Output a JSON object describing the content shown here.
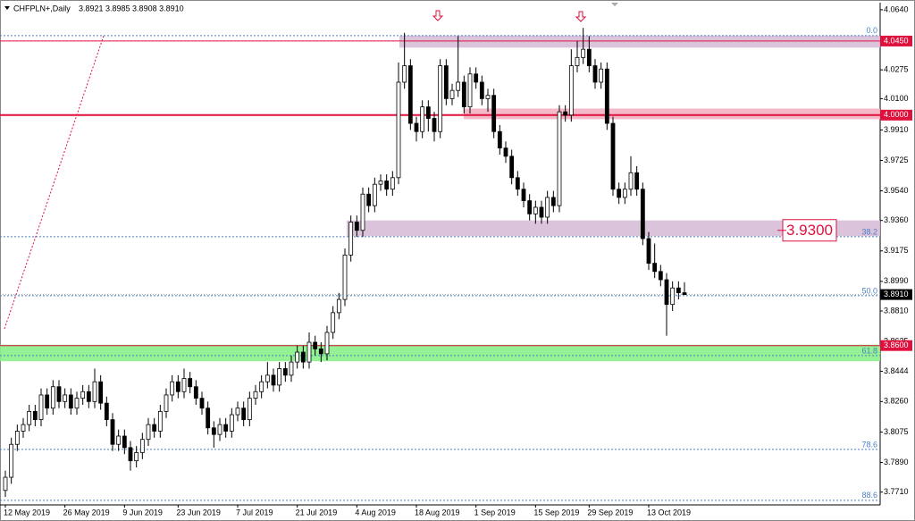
{
  "chart_data": {
    "type": "candlestick",
    "title": "CHFPLN+,Daily",
    "quote": "3.8921 3.8985 3.8908 3.8910",
    "categories": [
      "12 May 2019",
      null,
      null,
      null,
      null,
      null,
      null,
      null,
      null,
      null,
      "26 May 2019",
      null,
      null,
      null,
      null,
      null,
      null,
      null,
      null,
      null,
      "9 Jun 2019",
      null,
      null,
      null,
      null,
      null,
      null,
      null,
      null,
      "23 Jun 2019",
      null,
      null,
      null,
      null,
      null,
      null,
      null,
      null,
      null,
      "7 Jul 2019",
      null,
      null,
      null,
      null,
      null,
      null,
      null,
      null,
      null,
      "21 Jul 2019",
      null,
      null,
      null,
      null,
      null,
      null,
      null,
      null,
      null,
      "4 Aug 2019",
      null,
      null,
      null,
      null,
      null,
      null,
      null,
      null,
      null,
      "18 Aug 2019",
      null,
      null,
      null,
      null,
      null,
      null,
      null,
      null,
      null,
      "1 Sep 2019",
      null,
      null,
      null,
      null,
      null,
      null,
      null,
      null,
      null,
      "15 Sep 2019",
      null,
      null,
      null,
      null,
      null,
      null,
      null,
      null,
      "29 Sep 2019",
      null,
      null,
      null,
      null,
      null,
      null,
      null,
      null,
      null,
      "13 Oct 2019",
      null,
      null,
      null,
      null,
      null,
      null
    ],
    "open": [
      3.772,
      3.78,
      3.8,
      3.808,
      3.812,
      3.82,
      3.815,
      3.83,
      3.822,
      3.835,
      3.826,
      3.83,
      3.822,
      3.828,
      3.832,
      3.826,
      3.838,
      3.825,
      3.815,
      3.8,
      3.805,
      3.798,
      3.79,
      3.795,
      3.803,
      3.812,
      3.808,
      3.82,
      3.83,
      3.838,
      3.832,
      3.84,
      3.835,
      3.828,
      3.822,
      3.81,
      3.806,
      3.812,
      3.808,
      3.818,
      3.822,
      3.815,
      3.828,
      3.832,
      3.838,
      3.842,
      3.836,
      3.846,
      3.842,
      3.85,
      3.856,
      3.85,
      3.862,
      3.858,
      3.855,
      3.868,
      3.88,
      3.888,
      3.915,
      3.935,
      3.93,
      3.952,
      3.945,
      3.958,
      3.96,
      3.955,
      3.962,
      4.02,
      4.03,
      3.995,
      3.99,
      4.005,
      3.998,
      3.99,
      4.03,
      4.01,
      4.015,
      4.02,
      4.005,
      4.025,
      4.02,
      4.01,
      4.012,
      3.99,
      3.98,
      3.975,
      3.962,
      3.955,
      3.948,
      3.94,
      3.944,
      3.938,
      3.95,
      3.945,
      4.002,
      4.0,
      4.03,
      4.035,
      4.04,
      4.03,
      4.02,
      4.028,
      3.995,
      3.955,
      3.95,
      3.955,
      3.965,
      3.955,
      3.925,
      3.91,
      3.905,
      3.9,
      3.885,
      3.895,
      3.8921
    ],
    "high": [
      3.784,
      3.804,
      3.812,
      3.816,
      3.824,
      3.824,
      3.834,
      3.834,
      3.839,
      3.839,
      3.834,
      3.834,
      3.832,
      3.836,
      3.836,
      3.846,
      3.842,
      3.829,
      3.819,
      3.809,
      3.809,
      3.802,
      3.799,
      3.807,
      3.816,
      3.816,
      3.824,
      3.834,
      3.842,
      3.842,
      3.846,
      3.844,
      3.839,
      3.832,
      3.826,
      3.814,
      3.816,
      3.816,
      3.822,
      3.826,
      3.826,
      3.832,
      3.836,
      3.842,
      3.85,
      3.846,
      3.85,
      3.85,
      3.854,
      3.86,
      3.86,
      3.868,
      3.866,
      3.862,
      3.872,
      3.884,
      3.892,
      3.919,
      3.939,
      3.939,
      3.956,
      3.956,
      3.962,
      3.964,
      3.964,
      3.966,
      4.032,
      4.05,
      4.034,
      3.999,
      4.009,
      4.009,
      4.002,
      4.034,
      4.034,
      4.019,
      4.048,
      4.024,
      4.029,
      4.029,
      4.024,
      4.016,
      4.016,
      3.994,
      3.984,
      3.979,
      3.966,
      3.959,
      3.952,
      3.948,
      3.948,
      3.954,
      3.954,
      4.006,
      4.006,
      4.04,
      4.045,
      4.053,
      4.048,
      4.034,
      4.032,
      4.032,
      3.999,
      3.959,
      3.959,
      3.975,
      3.969,
      3.959,
      3.929,
      3.922,
      3.909,
      3.904,
      3.899,
      3.899,
      3.8985
    ],
    "low": [
      3.768,
      3.776,
      3.796,
      3.804,
      3.808,
      3.811,
      3.811,
      3.818,
      3.818,
      3.822,
      3.822,
      3.818,
      3.818,
      3.824,
      3.822,
      3.822,
      3.821,
      3.811,
      3.796,
      3.796,
      3.794,
      3.784,
      3.786,
      3.791,
      3.799,
      3.804,
      3.804,
      3.816,
      3.826,
      3.828,
      3.828,
      3.831,
      3.824,
      3.818,
      3.806,
      3.798,
      3.802,
      3.804,
      3.804,
      3.814,
      3.811,
      3.811,
      3.824,
      3.828,
      3.834,
      3.832,
      3.832,
      3.838,
      3.838,
      3.846,
      3.846,
      3.846,
      3.854,
      3.85,
      3.851,
      3.864,
      3.876,
      3.884,
      3.911,
      3.926,
      3.926,
      3.941,
      3.941,
      3.954,
      3.951,
      3.951,
      3.958,
      4.016,
      3.991,
      3.984,
      3.986,
      3.99,
      3.984,
      3.986,
      4.006,
      4.006,
      4.011,
      4.001,
      4.001,
      4.016,
      4.006,
      4.002,
      3.986,
      3.976,
      3.971,
      3.958,
      3.951,
      3.944,
      3.936,
      3.934,
      3.934,
      3.934,
      3.941,
      3.941,
      3.996,
      3.996,
      4.026,
      4.031,
      4.026,
      4.016,
      4.016,
      3.991,
      3.951,
      3.946,
      3.946,
      3.951,
      3.951,
      3.921,
      3.906,
      3.901,
      3.896,
      3.866,
      3.881,
      3.888,
      3.8908
    ],
    "close": [
      3.78,
      3.8,
      3.808,
      3.812,
      3.82,
      3.815,
      3.83,
      3.822,
      3.835,
      3.826,
      3.83,
      3.822,
      3.828,
      3.832,
      3.826,
      3.838,
      3.825,
      3.815,
      3.8,
      3.805,
      3.798,
      3.79,
      3.795,
      3.803,
      3.812,
      3.808,
      3.82,
      3.83,
      3.838,
      3.832,
      3.84,
      3.835,
      3.828,
      3.822,
      3.81,
      3.806,
      3.812,
      3.808,
      3.818,
      3.822,
      3.815,
      3.828,
      3.832,
      3.838,
      3.842,
      3.836,
      3.846,
      3.842,
      3.85,
      3.856,
      3.85,
      3.862,
      3.858,
      3.855,
      3.868,
      3.88,
      3.888,
      3.915,
      3.935,
      3.93,
      3.952,
      3.945,
      3.958,
      3.96,
      3.955,
      3.962,
      4.02,
      4.03,
      3.995,
      3.99,
      4.005,
      3.998,
      3.99,
      4.03,
      4.01,
      4.015,
      4.02,
      4.005,
      4.025,
      4.02,
      4.01,
      4.012,
      3.99,
      3.98,
      3.975,
      3.962,
      3.955,
      3.948,
      3.94,
      3.944,
      3.938,
      3.95,
      3.945,
      4.002,
      4.0,
      4.03,
      4.035,
      4.04,
      4.03,
      4.02,
      4.028,
      3.995,
      3.955,
      3.95,
      3.955,
      3.965,
      3.955,
      3.925,
      3.91,
      3.905,
      3.9,
      3.885,
      3.895,
      3.8921,
      3.891
    ],
    "ylim": [
      3.7632,
      4.0683
    ],
    "yticks": [
      {
        "value": 4.064,
        "label": "4.0640"
      },
      {
        "value": 4.0275,
        "label": "4.0275"
      },
      {
        "value": 4.01,
        "label": "4.0100"
      },
      {
        "value": 3.991,
        "label": "3.9910"
      },
      {
        "value": 3.9725,
        "label": "3.9725"
      },
      {
        "value": 3.954,
        "label": "3.9540"
      },
      {
        "value": 3.936,
        "label": "3.9360"
      },
      {
        "value": 3.9175,
        "label": "3.9175"
      },
      {
        "value": 3.899,
        "label": "3.8990"
      },
      {
        "value": 3.881,
        "label": "3.8810"
      },
      {
        "value": 3.8625,
        "label": "3.8625"
      },
      {
        "value": 3.8444,
        "label": "3.8444"
      },
      {
        "value": 3.826,
        "label": "3.8260"
      },
      {
        "value": 3.8075,
        "label": "3.8075"
      },
      {
        "value": 3.789,
        "label": "3.7890"
      },
      {
        "value": 3.771,
        "label": "3.7710"
      }
    ],
    "levels": [
      {
        "value": 4.045,
        "label": "4.0450",
        "color": "#e0103c"
      },
      {
        "value": 4.0,
        "label": "4.0000",
        "color": "#e0103c"
      },
      {
        "value": 3.891,
        "label": "3.8910",
        "color": "#000000"
      },
      {
        "value": 3.86,
        "label": "3.8600",
        "color": "#e0103c"
      }
    ],
    "fibonacci": [
      {
        "value": 4.0483,
        "label": "0.0"
      },
      {
        "value": 3.9261,
        "label": "38.2"
      },
      {
        "value": 3.8903,
        "label": "50.0"
      },
      {
        "value": 3.8539,
        "label": "61.8"
      },
      {
        "value": 3.7969,
        "label": "78.6"
      },
      {
        "value": 3.766,
        "label": "88.6"
      }
    ],
    "zones": [
      {
        "from": 4.041,
        "to": 4.0483,
        "color": "#d8bcd8"
      },
      {
        "from": 3.9975,
        "to": 4.004,
        "color": "#f4b2c4"
      },
      {
        "from": 3.9265,
        "to": 3.936,
        "color": "#d8bcd8"
      },
      {
        "from": 3.8505,
        "to": 3.8605,
        "color": "#88f088"
      }
    ],
    "annotation": {
      "value": 3.93,
      "label": "3.9300",
      "color": "#e0103c"
    },
    "bull_color": "#ffffff",
    "bear_color": "#000000"
  }
}
